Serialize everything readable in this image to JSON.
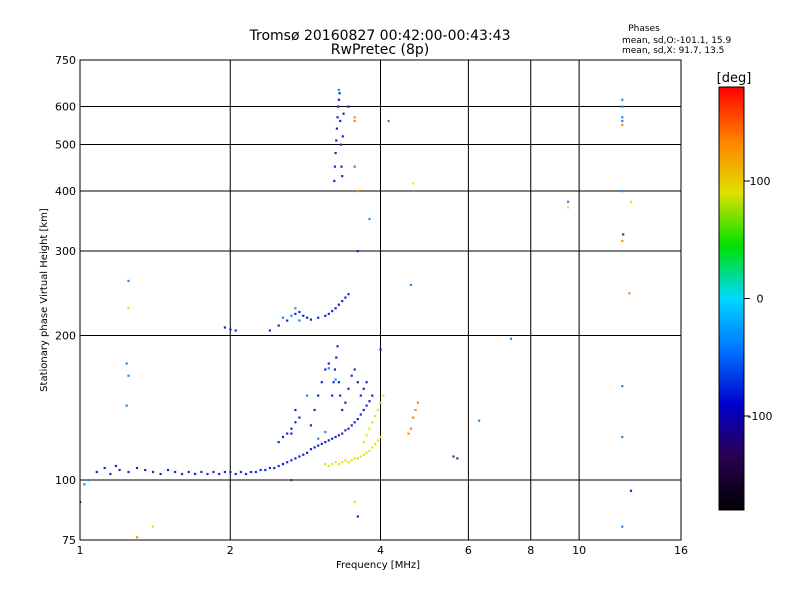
{
  "chart_data": {
    "type": "scatter",
    "title": "Tromsø 20160827 00:42:00-00:43:43",
    "subtitle": "RwPretec (8p)",
    "xlabel": "Frequency [MHz]",
    "ylabel": "Stationary phase Virtual Height [km]",
    "x_scale": "log",
    "y_scale": "log",
    "xlim": [
      1,
      16
    ],
    "ylim": [
      75,
      750
    ],
    "x_ticks": [
      "1",
      "2",
      "4",
      "6",
      "8",
      "10",
      "16"
    ],
    "y_ticks": [
      "75",
      "100",
      "200",
      "300",
      "400",
      "500",
      "600",
      "750"
    ],
    "grid": true,
    "stats": {
      "title": "Phases",
      "o_line": "mean, sd,O:-101.1, 15.9",
      "x_line": "mean, sd,X:  91.7, 13.5"
    },
    "colorbar": {
      "label": "[deg]",
      "min": -180,
      "max": 180,
      "ticks": [
        "100",
        "0",
        "-100"
      ],
      "colors": [
        "#000000",
        "#2a0050",
        "#0000cc",
        "#0070ff",
        "#00d8ff",
        "#00e000",
        "#e0e000",
        "#ff8000",
        "#ff0000"
      ]
    },
    "series": [
      {
        "color": "#1428d2",
        "points": [
          [
            1.08,
            104
          ],
          [
            1.12,
            106
          ],
          [
            1.15,
            103
          ],
          [
            1.18,
            107
          ],
          [
            1.2,
            105
          ],
          [
            1.25,
            104
          ],
          [
            1.3,
            106
          ],
          [
            1.35,
            105
          ],
          [
            1.4,
            104
          ],
          [
            1.45,
            103
          ],
          [
            1.5,
            105
          ],
          [
            1.55,
            104
          ],
          [
            1.6,
            103
          ],
          [
            1.65,
            104
          ],
          [
            1.7,
            103
          ],
          [
            1.75,
            104
          ],
          [
            1.8,
            103
          ],
          [
            1.85,
            104
          ],
          [
            1.9,
            103
          ],
          [
            1.95,
            104
          ],
          [
            2.0,
            104
          ],
          [
            2.05,
            103
          ],
          [
            2.1,
            104
          ],
          [
            2.15,
            103
          ],
          [
            2.2,
            104
          ],
          [
            2.25,
            104
          ],
          [
            2.3,
            105
          ],
          [
            2.35,
            105
          ],
          [
            2.4,
            106
          ],
          [
            2.45,
            106
          ],
          [
            2.5,
            107
          ],
          [
            2.55,
            108
          ],
          [
            2.6,
            109
          ],
          [
            2.65,
            110
          ],
          [
            2.7,
            111
          ],
          [
            2.75,
            112
          ],
          [
            2.8,
            113
          ],
          [
            2.85,
            114
          ],
          [
            2.9,
            116
          ],
          [
            2.95,
            117
          ],
          [
            3.0,
            118
          ],
          [
            3.05,
            119
          ],
          [
            3.1,
            120
          ],
          [
            3.15,
            121
          ],
          [
            3.2,
            122
          ],
          [
            3.25,
            123
          ],
          [
            3.3,
            124
          ],
          [
            3.35,
            125
          ],
          [
            3.4,
            127
          ],
          [
            3.45,
            128
          ],
          [
            3.5,
            130
          ],
          [
            3.55,
            132
          ],
          [
            3.6,
            134
          ],
          [
            3.65,
            137
          ],
          [
            3.7,
            140
          ],
          [
            3.75,
            143
          ],
          [
            3.8,
            146
          ],
          [
            3.85,
            150
          ],
          [
            3.2,
            150
          ],
          [
            3.22,
            160
          ],
          [
            3.24,
            170
          ],
          [
            3.26,
            180
          ],
          [
            3.28,
            190
          ],
          [
            3.3,
            160
          ],
          [
            3.32,
            150
          ],
          [
            3.35,
            140
          ],
          [
            3.4,
            145
          ],
          [
            3.45,
            155
          ],
          [
            3.5,
            165
          ],
          [
            3.55,
            170
          ],
          [
            3.6,
            160
          ],
          [
            3.65,
            150
          ],
          [
            3.7,
            155
          ],
          [
            3.75,
            160
          ],
          [
            2.5,
            120
          ],
          [
            2.55,
            123
          ],
          [
            2.6,
            125
          ],
          [
            2.65,
            128
          ],
          [
            2.7,
            132
          ],
          [
            2.75,
            135
          ],
          [
            2.7,
            140
          ],
          [
            2.65,
            125
          ],
          [
            2.9,
            130
          ],
          [
            2.95,
            140
          ],
          [
            3.0,
            150
          ],
          [
            3.05,
            160
          ],
          [
            3.1,
            170
          ],
          [
            3.15,
            175
          ],
          [
            1.95,
            208
          ],
          [
            2.0,
            206
          ],
          [
            2.05,
            205
          ],
          [
            2.4,
            205
          ],
          [
            2.5,
            210
          ],
          [
            2.6,
            215
          ],
          [
            2.7,
            222
          ],
          [
            2.75,
            224
          ],
          [
            2.8,
            220
          ],
          [
            2.85,
            218
          ],
          [
            2.9,
            216
          ],
          [
            3.0,
            218
          ],
          [
            3.1,
            220
          ],
          [
            3.15,
            222
          ],
          [
            3.2,
            225
          ],
          [
            3.25,
            228
          ],
          [
            3.3,
            232
          ],
          [
            3.35,
            236
          ],
          [
            3.4,
            240
          ],
          [
            3.45,
            244
          ],
          [
            3.23,
            420
          ],
          [
            3.24,
            450
          ],
          [
            3.25,
            480
          ],
          [
            3.26,
            510
          ],
          [
            3.27,
            540
          ],
          [
            3.28,
            570
          ],
          [
            3.29,
            600
          ],
          [
            3.3,
            620
          ],
          [
            3.31,
            640
          ],
          [
            3.32,
            560
          ],
          [
            3.33,
            500
          ],
          [
            3.34,
            450
          ],
          [
            3.35,
            430
          ],
          [
            3.36,
            520
          ],
          [
            3.37,
            580
          ],
          [
            3.45,
            600
          ],
          [
            3.6,
            300
          ],
          [
            1.0,
            90
          ],
          [
            3.6,
            84
          ],
          [
            12.7,
            95
          ],
          [
            4.0,
            187
          ]
        ]
      },
      {
        "color": "#1e8cf0",
        "points": [
          [
            1.25,
            260
          ],
          [
            1.24,
            175
          ],
          [
            1.25,
            165
          ],
          [
            1.24,
            143
          ],
          [
            1.02,
            98
          ],
          [
            1.04,
            100
          ],
          [
            2.55,
            218
          ],
          [
            2.65,
            220
          ],
          [
            2.7,
            228
          ],
          [
            2.75,
            215
          ],
          [
            2.85,
            150
          ],
          [
            3.0,
            122
          ],
          [
            3.1,
            126
          ],
          [
            3.25,
            162
          ],
          [
            3.15,
            171
          ],
          [
            3.55,
            450
          ],
          [
            3.8,
            350
          ],
          [
            4.15,
            560
          ],
          [
            4.6,
            255
          ],
          [
            6.3,
            133
          ],
          [
            7.3,
            197
          ],
          [
            9.5,
            380
          ],
          [
            12.2,
            620
          ],
          [
            12.2,
            600
          ],
          [
            12.2,
            570
          ],
          [
            12.2,
            560
          ],
          [
            12.2,
            400
          ],
          [
            12.2,
            157
          ],
          [
            12.2,
            123
          ],
          [
            12.2,
            80
          ],
          [
            3.3,
            650
          ]
        ]
      },
      {
        "color": "#e6e600",
        "points": [
          [
            3.1,
            108
          ],
          [
            3.15,
            107
          ],
          [
            3.2,
            108
          ],
          [
            3.25,
            109
          ],
          [
            3.3,
            108
          ],
          [
            3.35,
            109
          ],
          [
            3.4,
            110
          ],
          [
            3.45,
            109
          ],
          [
            3.5,
            110
          ],
          [
            3.55,
            111
          ],
          [
            3.6,
            111
          ],
          [
            3.65,
            112
          ],
          [
            3.7,
            113
          ],
          [
            3.75,
            114
          ],
          [
            3.8,
            115
          ],
          [
            3.85,
            117
          ],
          [
            3.9,
            119
          ],
          [
            3.95,
            121
          ],
          [
            4.0,
            123
          ],
          [
            3.7,
            120
          ],
          [
            3.75,
            124
          ],
          [
            3.8,
            128
          ],
          [
            3.85,
            132
          ],
          [
            3.9,
            136
          ],
          [
            3.95,
            140
          ],
          [
            4.0,
            145
          ],
          [
            4.05,
            150
          ],
          [
            3.55,
            90
          ],
          [
            4.65,
            415
          ],
          [
            9.5,
            370
          ],
          [
            12.7,
            380
          ],
          [
            1.25,
            228
          ],
          [
            1.4,
            80
          ]
        ]
      },
      {
        "color": "#ff8c00",
        "points": [
          [
            3.55,
            570
          ],
          [
            3.55,
            560
          ],
          [
            3.6,
            400
          ],
          [
            4.55,
            125
          ],
          [
            4.6,
            128
          ],
          [
            4.65,
            135
          ],
          [
            4.7,
            140
          ],
          [
            4.75,
            145
          ],
          [
            12.2,
            550
          ],
          [
            12.2,
            315
          ],
          [
            12.6,
            245
          ],
          [
            1.3,
            76
          ]
        ]
      },
      {
        "color": "#6a1a8a",
        "points": [
          [
            2.65,
            100
          ],
          [
            5.6,
            112
          ],
          [
            5.7,
            111
          ],
          [
            12.25,
            325
          ]
        ]
      }
    ]
  }
}
